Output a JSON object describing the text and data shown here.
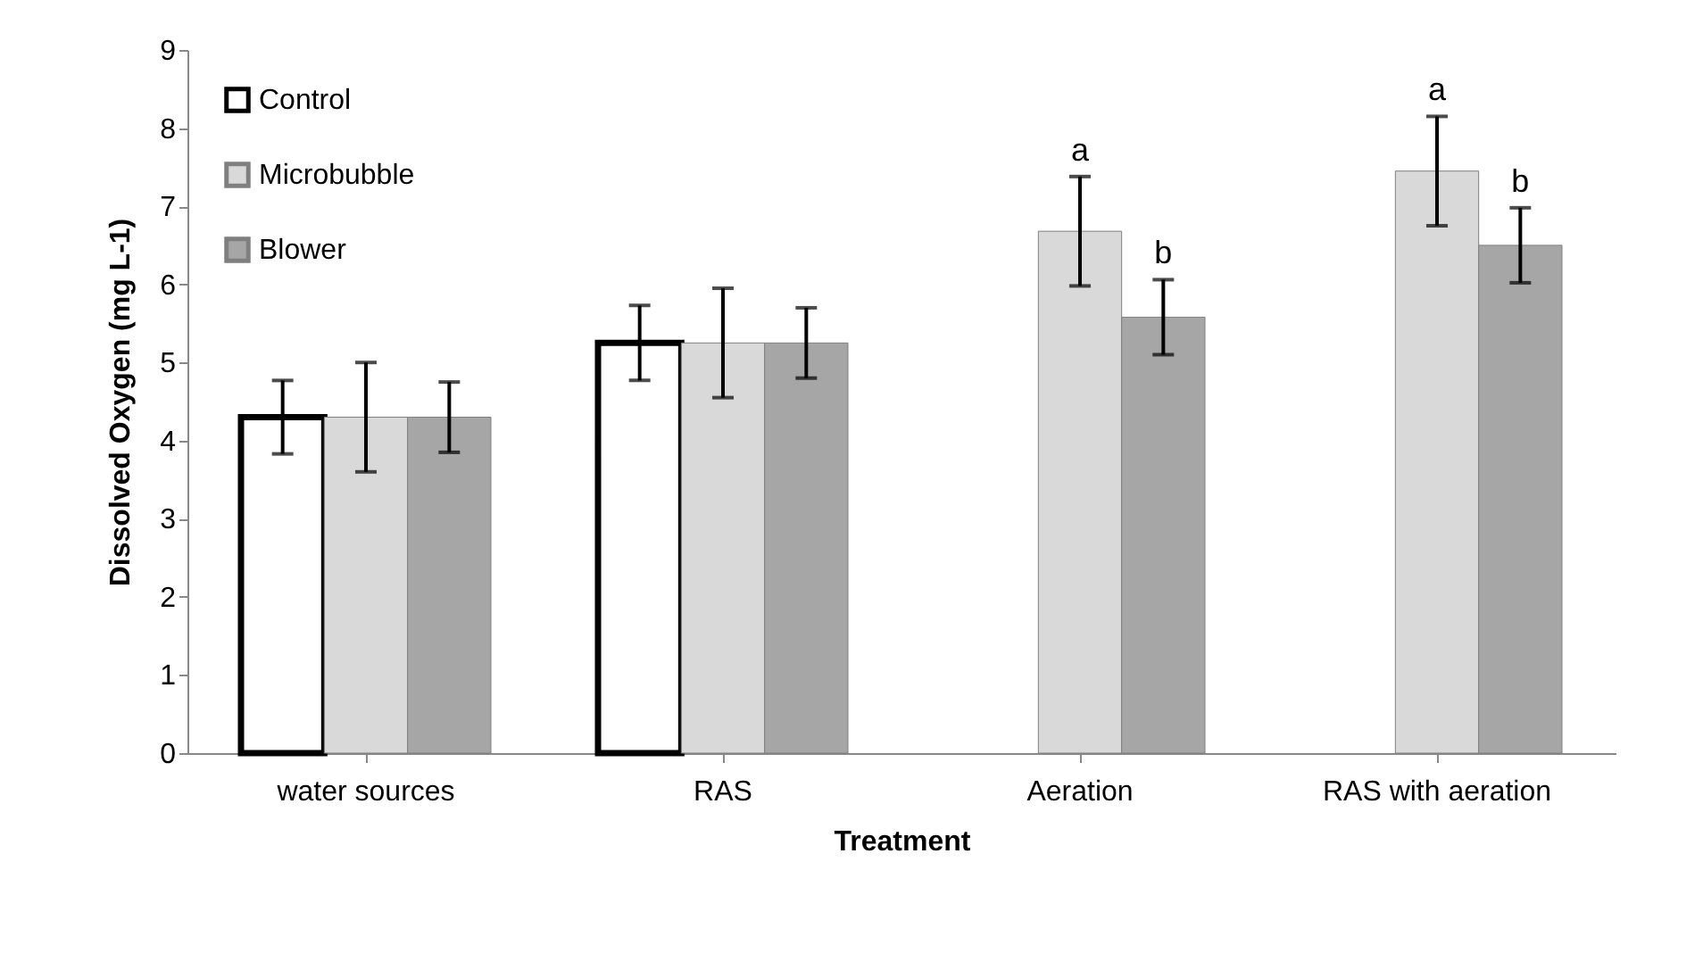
{
  "chart_data": {
    "type": "bar",
    "xlabel": "Treatment",
    "ylabel": "Dissolved Oxygen (mg L-1)",
    "categories": [
      "water sources",
      "RAS",
      "Aeration",
      "RAS with aeration"
    ],
    "series": [
      {
        "name": "Control",
        "color": "#ffffff",
        "values": [
          4.3,
          5.25,
          null,
          null
        ],
        "errors": [
          0.47,
          0.48,
          null,
          null
        ]
      },
      {
        "name": "Microbubble",
        "color": "#d9d9d9",
        "values": [
          4.3,
          5.25,
          6.68,
          7.45
        ],
        "errors": [
          0.7,
          0.7,
          0.7,
          0.7
        ]
      },
      {
        "name": "Blower",
        "color": "#a6a6a6",
        "values": [
          4.3,
          5.25,
          5.58,
          6.5
        ],
        "errors": [
          0.45,
          0.45,
          0.48,
          0.48
        ]
      }
    ],
    "ylim": [
      0,
      9
    ],
    "yticks": [
      0,
      1,
      2,
      3,
      4,
      5,
      6,
      7,
      8,
      9
    ],
    "legend": "top left",
    "annotations": [
      {
        "text": "a",
        "x": "Aeration",
        "y": 7.38
      },
      {
        "text": "b",
        "x": "Aeration",
        "y": 6.06
      },
      {
        "text": "a",
        "x": "RAS with aeration",
        "y": 8.15
      },
      {
        "text": "b",
        "x": "RAS with aeration",
        "y": 6.98
      }
    ]
  }
}
